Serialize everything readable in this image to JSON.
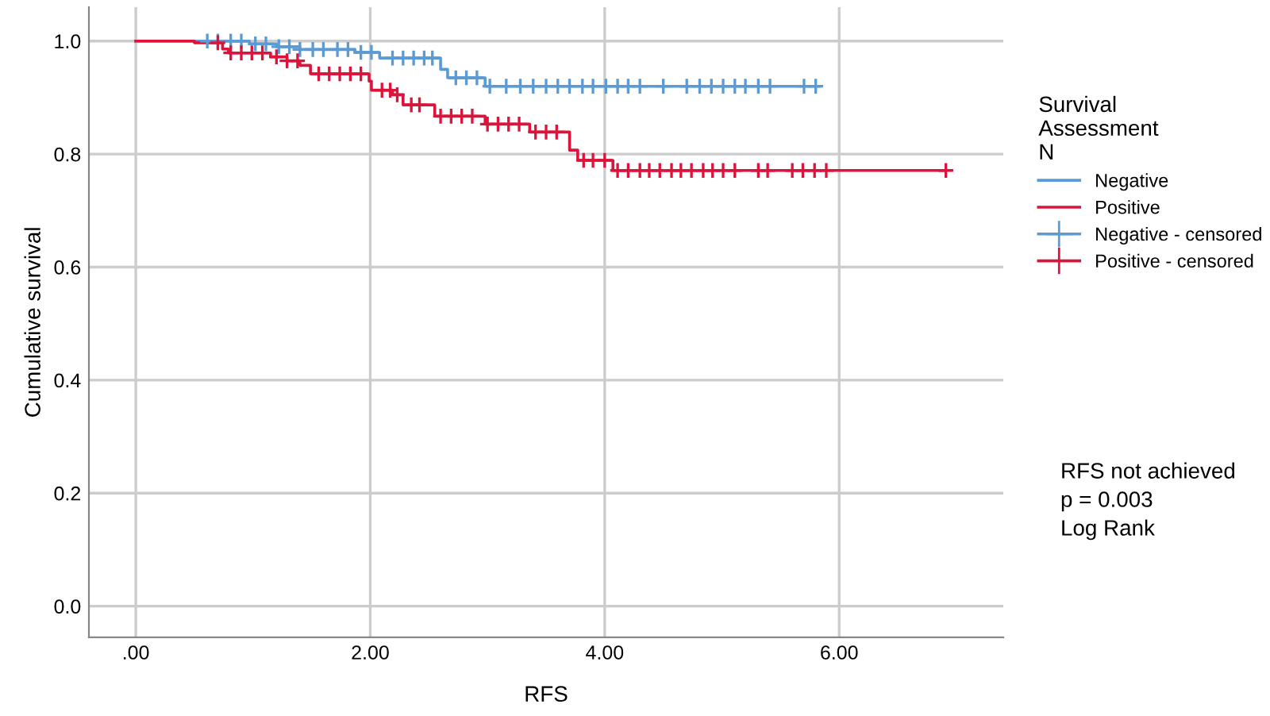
{
  "chart_data": {
    "type": "step",
    "xlabel": "RFS",
    "ylabel": "Cumulative survival",
    "legend_title": "Survival\nAssessment\nN",
    "annotations": [
      "RFS not achieved\np = 0.003\nLog Rank"
    ],
    "xlim": [
      -0.4,
      7.4
    ],
    "ylim": [
      -0.055,
      1.06
    ],
    "xticks": [
      {
        "value": 0,
        "label": ".00"
      },
      {
        "value": 2,
        "label": "2.00"
      },
      {
        "value": 4,
        "label": "4.00"
      },
      {
        "value": 6,
        "label": "6.00"
      }
    ],
    "yticks": [
      {
        "value": 0,
        "label": "0.0"
      },
      {
        "value": 0.2,
        "label": "0.2"
      },
      {
        "value": 0.4,
        "label": "0.4"
      },
      {
        "value": 0.6,
        "label": "0.6"
      },
      {
        "value": 0.8,
        "label": "0.8"
      },
      {
        "value": 1,
        "label": "1.0"
      }
    ],
    "grid": true,
    "legend": "right",
    "series": [
      {
        "name": "Negative",
        "color": "#5b9bd5",
        "x": [
          0,
          0.97,
          1.2,
          1.4,
          1.87,
          2.08,
          2.6,
          2.66,
          2.98,
          5.83
        ],
        "values": [
          1.0,
          0.995,
          0.99,
          0.985,
          0.98,
          0.97,
          0.95,
          0.935,
          0.92,
          0.92
        ]
      },
      {
        "name": "Positive",
        "color": "#dc143c",
        "x": [
          0,
          0.5,
          0.74,
          0.79,
          1.15,
          1.29,
          1.4,
          1.49,
          1.99,
          2.01,
          2.19,
          2.28,
          2.55,
          2.98,
          3.36,
          3.7,
          3.77,
          4.07,
          6.91
        ],
        "values": [
          1.0,
          0.997,
          0.986,
          0.979,
          0.972,
          0.965,
          0.957,
          0.942,
          0.929,
          0.913,
          0.905,
          0.887,
          0.867,
          0.853,
          0.839,
          0.807,
          0.789,
          0.771,
          0.771
        ]
      },
      {
        "name": "Negative - censored",
        "type": "scatter",
        "marker": "cross",
        "color": "#5b9bd5",
        "x": [
          0.61,
          0.7,
          0.81,
          0.9,
          1.02,
          1.11,
          1.22,
          1.31,
          1.4,
          1.51,
          1.6,
          1.72,
          1.81,
          1.92,
          2.01,
          2.19,
          2.28,
          2.37,
          2.46,
          2.53,
          2.73,
          2.82,
          2.91,
          3.02,
          3.16,
          3.28,
          3.39,
          3.5,
          3.6,
          3.7,
          3.81,
          3.9,
          4.01,
          4.11,
          4.2,
          4.3,
          4.5,
          4.7,
          4.81,
          4.91,
          5.01,
          5.11,
          5.2,
          5.31,
          5.41,
          5.7,
          5.8
        ],
        "values": [
          1.0,
          1.0,
          1.0,
          1.0,
          0.995,
          0.995,
          0.99,
          0.99,
          0.985,
          0.985,
          0.985,
          0.985,
          0.985,
          0.98,
          0.98,
          0.97,
          0.97,
          0.97,
          0.97,
          0.97,
          0.935,
          0.935,
          0.935,
          0.92,
          0.92,
          0.92,
          0.92,
          0.92,
          0.92,
          0.92,
          0.92,
          0.92,
          0.92,
          0.92,
          0.92,
          0.92,
          0.92,
          0.92,
          0.92,
          0.92,
          0.92,
          0.92,
          0.92,
          0.92,
          0.92,
          0.92,
          0.92
        ]
      },
      {
        "name": "Positive - censored",
        "type": "scatter",
        "marker": "cross",
        "color": "#dc143c",
        "x": [
          0.7,
          0.81,
          0.9,
          0.99,
          1.08,
          1.2,
          1.29,
          1.38,
          1.56,
          1.65,
          1.74,
          1.83,
          1.92,
          2.1,
          2.17,
          2.23,
          2.35,
          2.42,
          2.6,
          2.69,
          2.78,
          2.87,
          3.0,
          3.09,
          3.18,
          3.27,
          3.41,
          3.5,
          3.59,
          3.82,
          3.9,
          4.0,
          4.11,
          4.2,
          4.3,
          4.38,
          4.47,
          4.57,
          4.65,
          4.74,
          4.84,
          4.92,
          5.01,
          5.11,
          5.31,
          5.39,
          5.6,
          5.69,
          5.79,
          5.89,
          6.91
        ],
        "values": [
          0.997,
          0.979,
          0.979,
          0.979,
          0.979,
          0.972,
          0.965,
          0.965,
          0.942,
          0.942,
          0.942,
          0.942,
          0.942,
          0.913,
          0.913,
          0.905,
          0.887,
          0.887,
          0.867,
          0.867,
          0.867,
          0.867,
          0.853,
          0.853,
          0.853,
          0.853,
          0.839,
          0.839,
          0.839,
          0.789,
          0.789,
          0.789,
          0.771,
          0.771,
          0.771,
          0.771,
          0.771,
          0.771,
          0.771,
          0.771,
          0.771,
          0.771,
          0.771,
          0.771,
          0.771,
          0.771,
          0.771,
          0.771,
          0.771,
          0.771,
          0.771
        ]
      }
    ]
  }
}
